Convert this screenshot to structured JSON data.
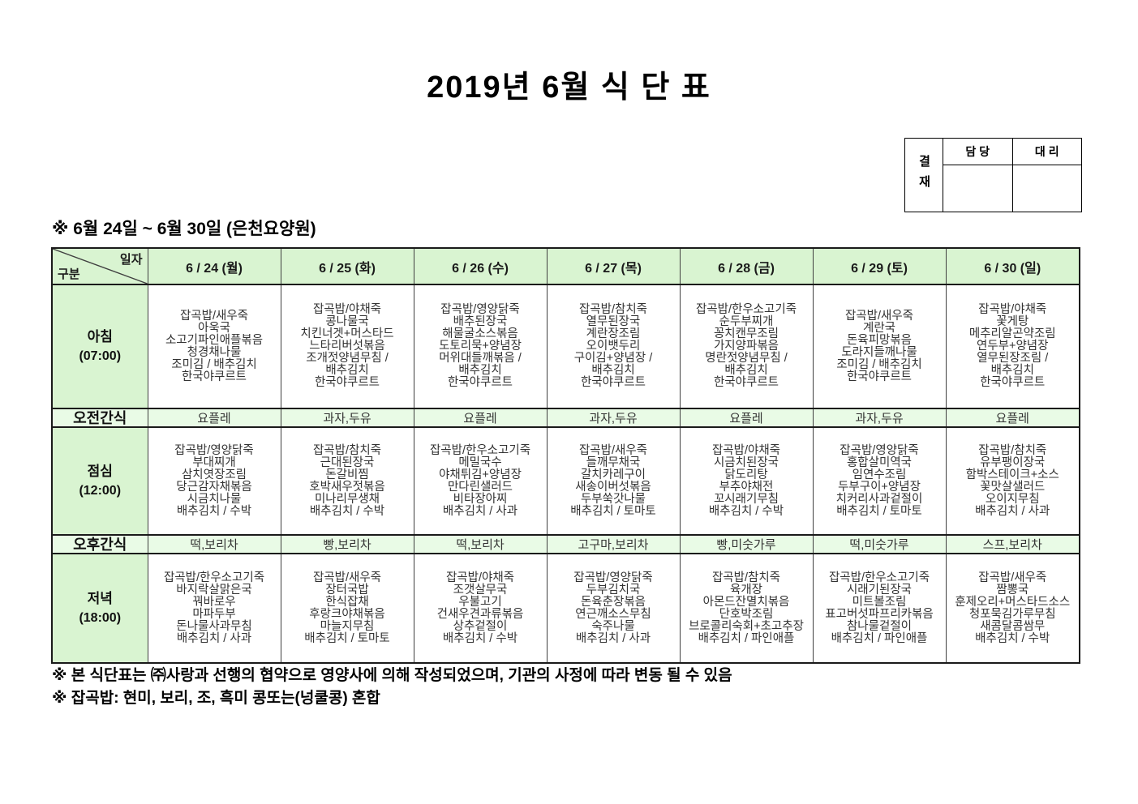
{
  "page": {
    "title": "2019년 6월 식 단 표",
    "subtitle": "※ 6월 24일 ~ 6월 30일 (은천요양원)",
    "notes": [
      "※ 본 식단표는 ㈜사랑과 선행의 협약으로 영양사에 의해 작성되었으며, 기관의 사정에 따라 변동 될 수 있음",
      "※ 잡곡밥: 현미, 보리, 조, 흑미 콩또는(넝쿨콩) 혼합"
    ]
  },
  "approval": {
    "title": "결재",
    "columns": [
      "담 당",
      "대 리"
    ]
  },
  "colors": {
    "header_green": "#d9f4d1",
    "snack_green": "#e9fbe6",
    "border_dark": "#404040",
    "text_dark": "#333333"
  },
  "table": {
    "corner": {
      "top_right": "일자",
      "bottom_left": "구분"
    },
    "days": [
      "6 / 24 (월)",
      "6 / 25 (화)",
      "6 / 26 (수)",
      "6 / 27 (목)",
      "6 / 28 (금)",
      "6 / 29 (토)",
      "6 / 30 (일)"
    ],
    "rows": [
      {
        "type": "meal",
        "label": "아침",
        "time": "(07:00)",
        "cells": [
          [
            "잡곡밥/새우죽",
            "아욱국",
            "소고기파인애플볶음",
            "청경채나물",
            "조미김 / 배추김치",
            "한국야쿠르트"
          ],
          [
            "잡곡밥/야채죽",
            "콩나물국",
            "치킨너겟+머스타드",
            "느타리버섯볶음",
            "조개젓양념무침 /",
            "배추김치",
            "한국야쿠르트"
          ],
          [
            "잡곡밥/영양닭죽",
            "배추된장국",
            "해물굴소스볶음",
            "도토리묵+양념장",
            "머위대들깨볶음 /",
            "배추김치",
            "한국야쿠르트"
          ],
          [
            "잡곡밥/참치죽",
            "열무된장국",
            "계란장조림",
            "오이뱃두리",
            "구이김+양념장 /",
            "배추김치",
            "한국야쿠르트"
          ],
          [
            "잡곡밥/한우소고기죽",
            "순두부찌개",
            "꽁치캔무조림",
            "가지양파볶음",
            "명란젓양념무침 /",
            "배추김치",
            "한국야쿠르트"
          ],
          [
            "잡곡밥/새우죽",
            "계란국",
            "돈육피망볶음",
            "도라지들깨나물",
            "조미김 / 배추김치",
            "한국야쿠르트"
          ],
          [
            "잡곡밥/야채죽",
            "꽃게탕",
            "메추리알곤약조림",
            "연두부+양념장",
            "열무된장조림 /",
            "배추김치",
            "한국야쿠르트"
          ]
        ]
      },
      {
        "type": "snack",
        "label": "오전간식",
        "cells": [
          "요플레",
          "과자,두유",
          "요플레",
          "과자,두유",
          "요플레",
          "과자,두유",
          "요플레"
        ]
      },
      {
        "type": "meal",
        "label": "점심",
        "time": "(12:00)",
        "cells": [
          [
            "잡곡밥/영양닭죽",
            "부대찌개",
            "삼치엿장조림",
            "당근감자채볶음",
            "시금치나물",
            "배추김치 / 수박"
          ],
          [
            "잡곡밥/참치죽",
            "근대된장국",
            "돈갈비찜",
            "호박새우젓볶음",
            "미나리무생채",
            "배추김치 / 수박"
          ],
          [
            "잡곡밥/한우소고기죽",
            "메밀국수",
            "야채튀김+양념장",
            "만다린샐러드",
            "비타장아찌",
            "배추김치 / 사과"
          ],
          [
            "잡곡밥/새우죽",
            "들깨무채국",
            "갈치카레구이",
            "새송이버섯볶음",
            "두부쑥갓나물",
            "배추김치 / 토마토"
          ],
          [
            "잡곡밥/야채죽",
            "시금치된장국",
            "닭도리탕",
            "부추야채전",
            "꼬시래기무침",
            "배추김치 / 수박"
          ],
          [
            "잡곡밥/영양닭죽",
            "홍합살미역국",
            "임연수조림",
            "두부구이+양념장",
            "치커리사과겉절이",
            "배추김치 / 토마토"
          ],
          [
            "잡곡밥/참치죽",
            "유부팽이장국",
            "함박스테이크+소스",
            "꽃맛살샐러드",
            "오이지무침",
            "배추김치 / 사과"
          ]
        ]
      },
      {
        "type": "snack",
        "label": "오후간식",
        "cells": [
          "떡,보리차",
          "빵,보리차",
          "떡,보리차",
          "고구마,보리차",
          "빵,미숫가루",
          "떡,미숫가루",
          "스프,보리차"
        ]
      },
      {
        "type": "meal",
        "label": "저녁",
        "time": "(18:00)",
        "cells": [
          [
            "잡곡밥/한우소고기죽",
            "바지락살맑은국",
            "꿔바로우",
            "마파두부",
            "돈나물사과무침",
            "배추김치 / 사과"
          ],
          [
            "잡곡밥/새우죽",
            "장터국밥",
            "한식잡채",
            "후랑크야채볶음",
            "마늘지무침",
            "배추김치 / 토마토"
          ],
          [
            "잡곡밥/야채죽",
            "조갯살무국",
            "우불고기",
            "건새우견과류볶음",
            "상추겉절이",
            "배추김치 / 수박"
          ],
          [
            "잡곡밥/영양닭죽",
            "두부김치국",
            "돈육춘장볶음",
            "연근깨소스무침",
            "숙주나물",
            "배추김치 / 사과"
          ],
          [
            "잡곡밥/참치죽",
            "육개장",
            "아몬드잔멸치볶음",
            "단호박조림",
            "브로콜리숙회+초고추장",
            "배추김치 / 파인애플"
          ],
          [
            "잡곡밥/한우소고기죽",
            "시래기된장국",
            "미트볼조림",
            "표고버섯파프리카볶음",
            "참나물겉절이",
            "배추김치 / 파인애플"
          ],
          [
            "잡곡밥/새우죽",
            "짬뽕국",
            "훈제오리+머스타드소스",
            "청포묵김가루무침",
            "새콤달콤쌈무",
            "배추김치 / 수박"
          ]
        ]
      }
    ]
  }
}
